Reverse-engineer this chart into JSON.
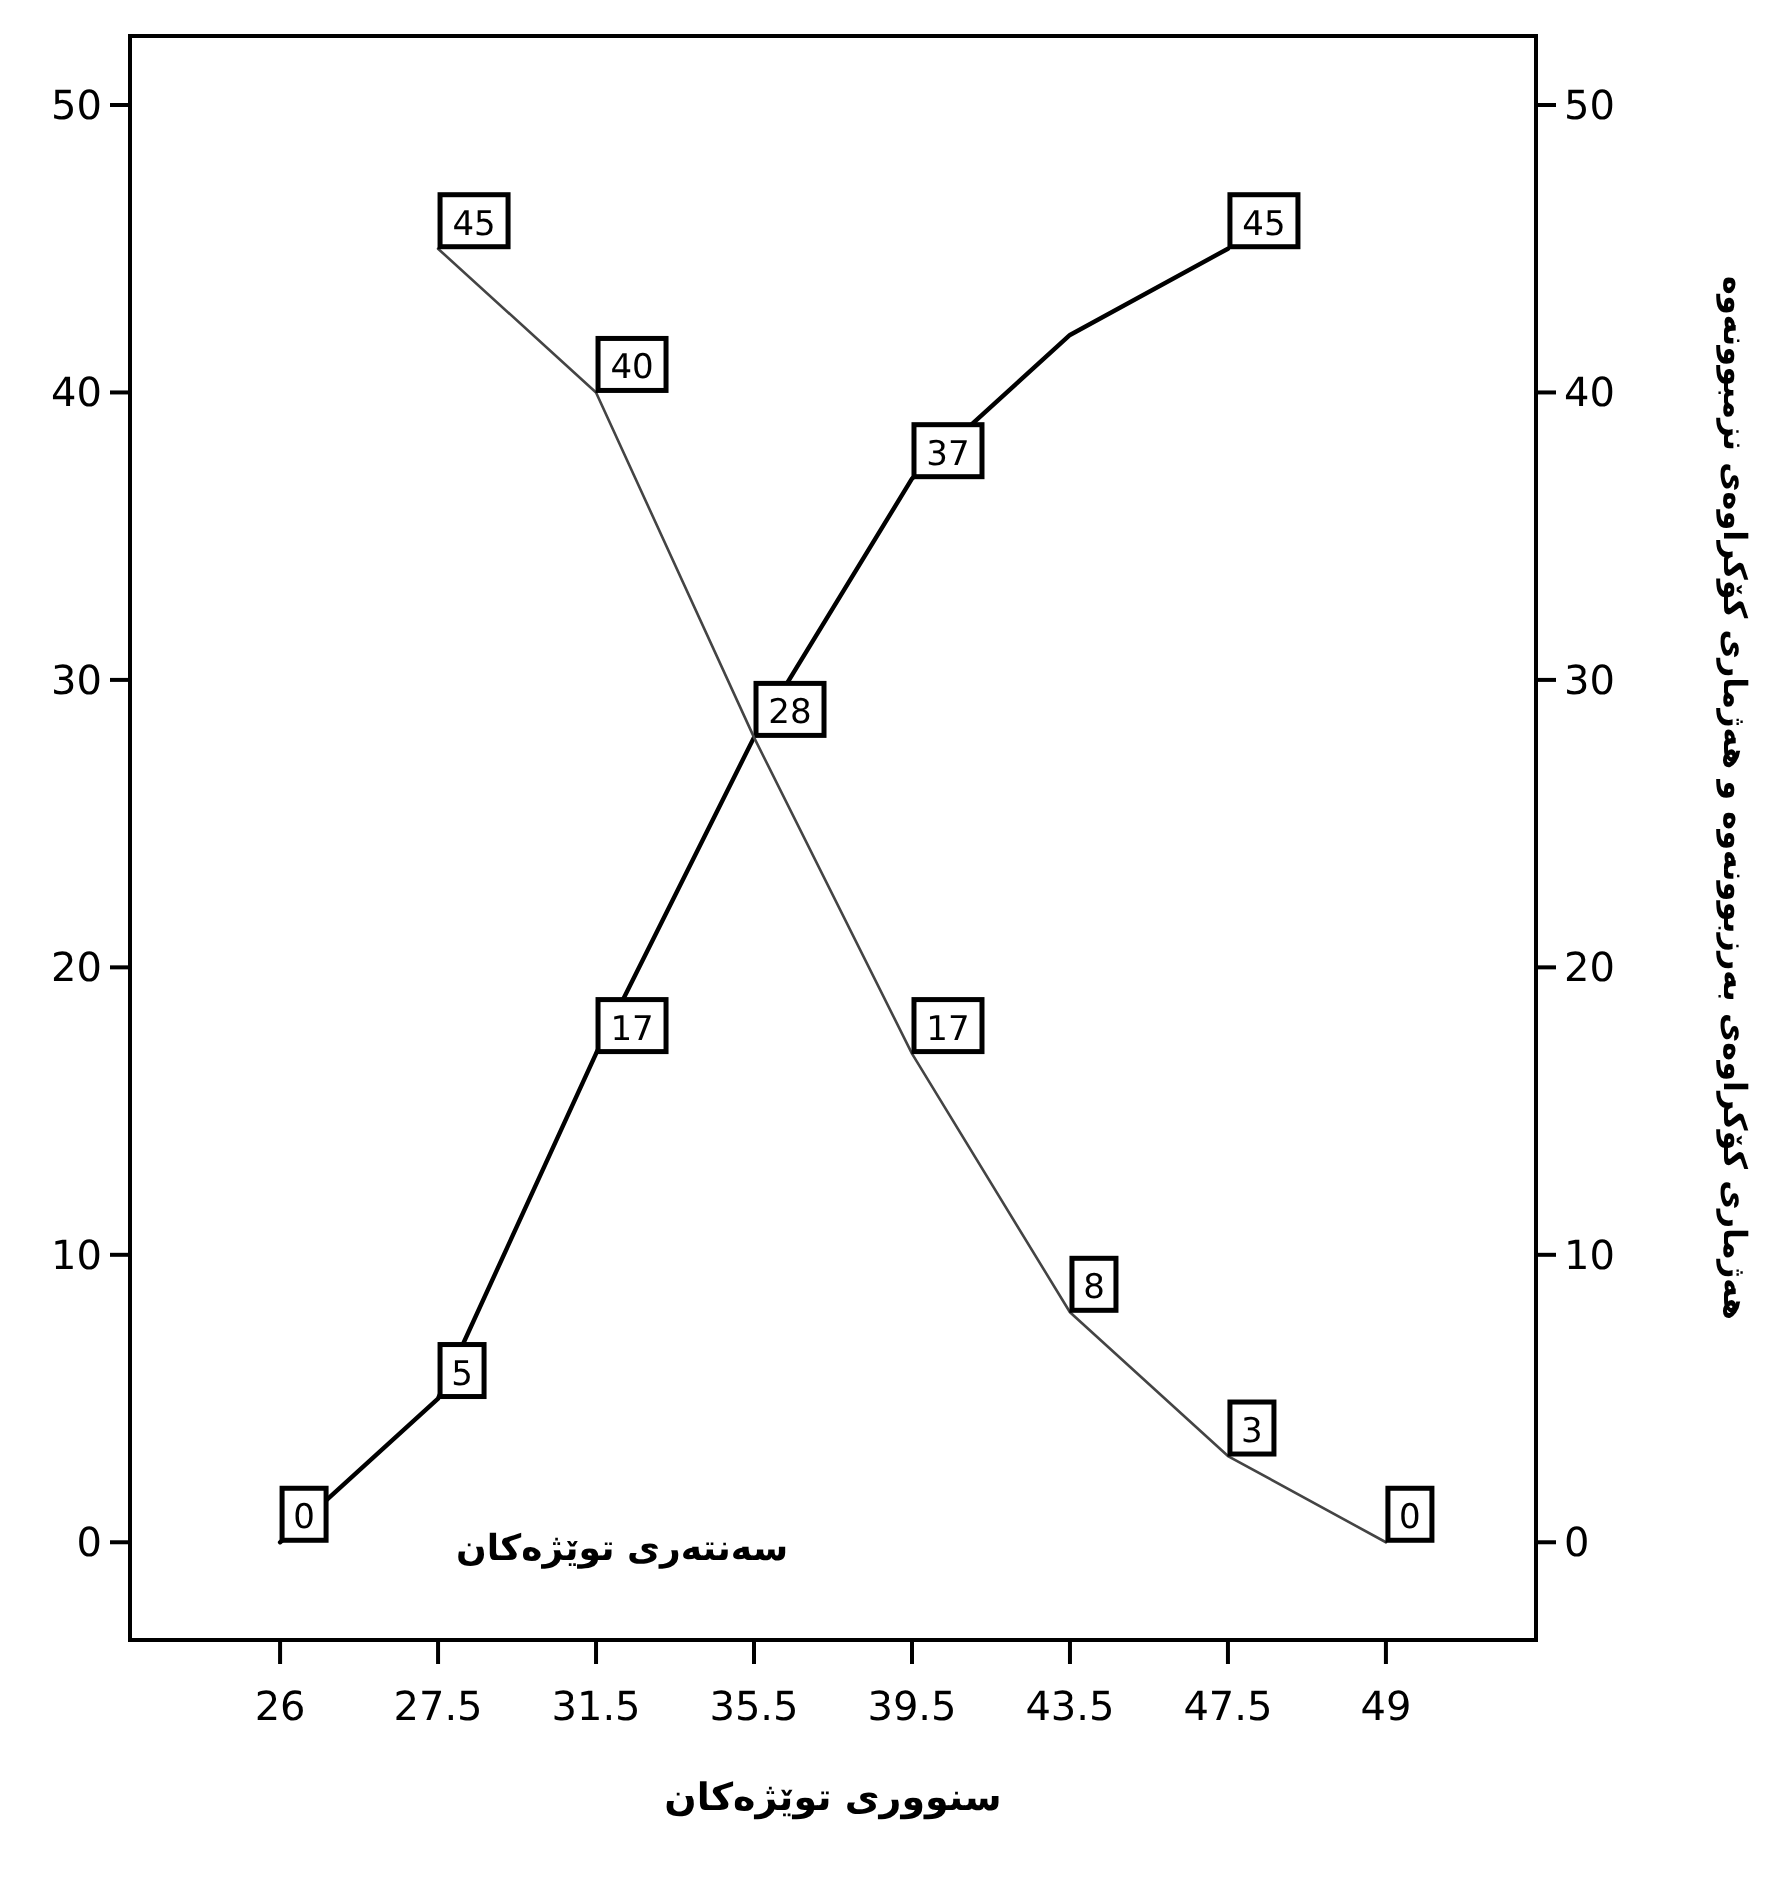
{
  "chart_data": {
    "type": "line",
    "xlabel": "سنووری توێژەکان",
    "y2label": "ھەژماری کۆکراوەی بەرزبوونەوە و ھەژماری کۆکراوەی نزمبوونەوە",
    "annotations": [
      "سەنتەری توێژەکان"
    ],
    "categories": [
      "26",
      "27.5",
      "31.5",
      "35.5",
      "39.5",
      "43.5",
      "47.5",
      "49"
    ],
    "series": [
      {
        "color": "#000000",
        "values": [
          0,
          5,
          17,
          28,
          37,
          42,
          45,
          null
        ],
        "value_labels": [
          "0",
          "5",
          "17",
          "28",
          "37",
          null,
          "45",
          null
        ]
      },
      {
        "color": "#444444",
        "values": [
          null,
          45,
          40,
          28,
          17,
          8,
          3,
          0
        ],
        "value_labels": [
          null,
          "45",
          "40",
          null,
          "17",
          "8",
          "3",
          "0"
        ]
      }
    ],
    "ylim": [
      -3.4,
      52.4
    ],
    "yticks": [
      0,
      10,
      20,
      30,
      40,
      50
    ],
    "y2lim": [
      -3.4,
      52.4
    ],
    "y2ticks": [
      0,
      10,
      20,
      30,
      40,
      50
    ],
    "grid": false,
    "marker": "none",
    "line_style": "solid"
  }
}
